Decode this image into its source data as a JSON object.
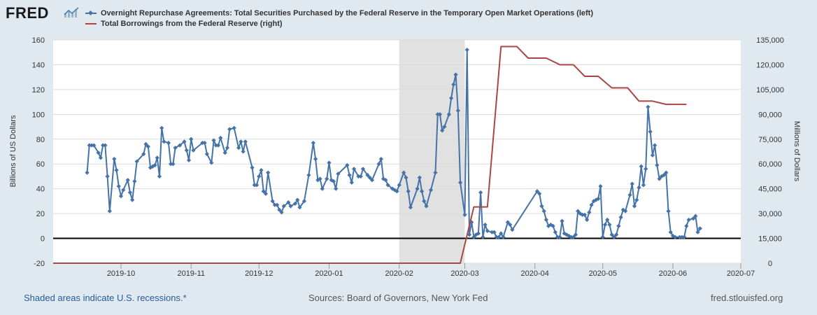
{
  "brand": {
    "logo_text": "FRED"
  },
  "legend": [
    {
      "label": "Overnight Repurchase Agreements: Total Securities Purchased by the Federal Reserve in the Temporary Open Market Operations (left)",
      "color": "#4572a7"
    },
    {
      "label": "Total Borrowings from the Federal Reserve (right)",
      "color": "#aa4643"
    }
  ],
  "footer": {
    "recession_note": "Shaded areas indicate U.S. recessions.*",
    "sources": "Sources: Board of Governors, New York Fed",
    "site": "fred.stlouisfed.org"
  },
  "colors": {
    "background": "#e1e9f0",
    "plot_bg": "#ffffff",
    "grid": "#dcdcdc",
    "recession": "#e1e1e1",
    "zero_line": "#000000"
  },
  "chart_data": {
    "type": "line",
    "xlabel": "",
    "ylabel": "Billions of US Dollars",
    "ylabel_right": "Millions of Dollars",
    "ylim": [
      -20,
      160
    ],
    "ylim_right": [
      0,
      135000
    ],
    "x_range_days": [
      0,
      304
    ],
    "yticks": [
      "160",
      "140",
      "120",
      "100",
      "80",
      "60",
      "40",
      "20",
      "0",
      "-20"
    ],
    "yticks_right": [
      "135,000",
      "120,000",
      "105,000",
      "90,000",
      "75,000",
      "60,000",
      "45,000",
      "30,000",
      "15,000",
      "0"
    ],
    "xticks": [
      {
        "label": "2019-10",
        "day": 30
      },
      {
        "label": "2019-11",
        "day": 61
      },
      {
        "label": "2019-12",
        "day": 91
      },
      {
        "label": "2020-01",
        "day": 122
      },
      {
        "label": "2020-02",
        "day": 153
      },
      {
        "label": "2020-03",
        "day": 182
      },
      {
        "label": "2020-04",
        "day": 213
      },
      {
        "label": "2020-05",
        "day": 243
      },
      {
        "label": "2020-06",
        "day": 274
      },
      {
        "label": "2020-07",
        "day": 304
      }
    ],
    "recession": {
      "start_day": 153,
      "end_day": 182
    },
    "series": [
      {
        "name": "Overnight Repurchase Agreements (left, billions)",
        "axis": "left",
        "color": "#4572a7",
        "points": [
          [
            15,
            53
          ],
          [
            16,
            75
          ],
          [
            17,
            75
          ],
          [
            18,
            75
          ],
          [
            20,
            69
          ],
          [
            21,
            65
          ],
          [
            22,
            75
          ],
          [
            23,
            75
          ],
          [
            24,
            50
          ],
          [
            25,
            22
          ],
          [
            27,
            64
          ],
          [
            28,
            55
          ],
          [
            29,
            42
          ],
          [
            30,
            34
          ],
          [
            31,
            39
          ],
          [
            33,
            47
          ],
          [
            34,
            37
          ],
          [
            35,
            31
          ],
          [
            36,
            46
          ],
          [
            37,
            62
          ],
          [
            40,
            68
          ],
          [
            41,
            76
          ],
          [
            42,
            74
          ],
          [
            43,
            57
          ],
          [
            44,
            58
          ],
          [
            45,
            59
          ],
          [
            46,
            65
          ],
          [
            47,
            50
          ],
          [
            48,
            89
          ],
          [
            49,
            78
          ],
          [
            51,
            77
          ],
          [
            52,
            60
          ],
          [
            53,
            60
          ],
          [
            54,
            73
          ],
          [
            56,
            75
          ],
          [
            58,
            78
          ],
          [
            59,
            71
          ],
          [
            60,
            63
          ],
          [
            61,
            80
          ],
          [
            62,
            71
          ],
          [
            66,
            77
          ],
          [
            67,
            77
          ],
          [
            68,
            68
          ],
          [
            70,
            61
          ],
          [
            71,
            79
          ],
          [
            72,
            75
          ],
          [
            73,
            75
          ],
          [
            74,
            81
          ],
          [
            76,
            69
          ],
          [
            77,
            73
          ],
          [
            78,
            88
          ],
          [
            80,
            89
          ],
          [
            82,
            73
          ],
          [
            83,
            78
          ],
          [
            84,
            70
          ],
          [
            85,
            78
          ],
          [
            88,
            57
          ],
          [
            89,
            43
          ],
          [
            90,
            43
          ],
          [
            91,
            50
          ],
          [
            92,
            55
          ],
          [
            93,
            38
          ],
          [
            94,
            36
          ],
          [
            95,
            53
          ],
          [
            97,
            30
          ],
          [
            98,
            27
          ],
          [
            99,
            27
          ],
          [
            100,
            23
          ],
          [
            101,
            21
          ],
          [
            102,
            26
          ],
          [
            104,
            29
          ],
          [
            105,
            26
          ],
          [
            107,
            28
          ],
          [
            108,
            31
          ],
          [
            109,
            25
          ],
          [
            111,
            30
          ],
          [
            113,
            51
          ],
          [
            115,
            77
          ],
          [
            116,
            64
          ],
          [
            117,
            47
          ],
          [
            118,
            48
          ],
          [
            119,
            40
          ],
          [
            121,
            48
          ],
          [
            122,
            61
          ],
          [
            123,
            47
          ],
          [
            124,
            46
          ],
          [
            125,
            40
          ],
          [
            126,
            52
          ],
          [
            130,
            59
          ],
          [
            131,
            51
          ],
          [
            132,
            45
          ],
          [
            133,
            56
          ],
          [
            135,
            50
          ],
          [
            136,
            50
          ],
          [
            137,
            56
          ],
          [
            139,
            51
          ],
          [
            140,
            49
          ],
          [
            141,
            47
          ],
          [
            144,
            60
          ],
          [
            145,
            64
          ],
          [
            146,
            48
          ],
          [
            147,
            47
          ],
          [
            148,
            43
          ],
          [
            150,
            40
          ],
          [
            151,
            39
          ],
          [
            152,
            38
          ],
          [
            153,
            43
          ],
          [
            155,
            53
          ],
          [
            156,
            49
          ],
          [
            157,
            38
          ],
          [
            158,
            25
          ],
          [
            161,
            40
          ],
          [
            162,
            49
          ],
          [
            163,
            38
          ],
          [
            164,
            30
          ],
          [
            165,
            26
          ],
          [
            167,
            39
          ],
          [
            169,
            53
          ],
          [
            170,
            100
          ],
          [
            171,
            100
          ],
          [
            172,
            87
          ],
          [
            173,
            90
          ],
          [
            175,
            100
          ],
          [
            176,
            113
          ],
          [
            177,
            124
          ],
          [
            178,
            132
          ],
          [
            179,
            103
          ],
          [
            180,
            45
          ],
          [
            182,
            19
          ],
          [
            183,
            152
          ],
          [
            184,
            3
          ],
          [
            185,
            13
          ],
          [
            186,
            1
          ],
          [
            187,
            3
          ],
          [
            188,
            4
          ],
          [
            189,
            37
          ],
          [
            190,
            1
          ],
          [
            191,
            11
          ],
          [
            192,
            6
          ],
          [
            194,
            5
          ],
          [
            195,
            5
          ],
          [
            196,
            1
          ],
          [
            197,
            1
          ],
          [
            198,
            4
          ],
          [
            199,
            1
          ],
          [
            201,
            13
          ],
          [
            202,
            11
          ],
          [
            203,
            7
          ],
          [
            214,
            38
          ],
          [
            215,
            36
          ],
          [
            216,
            26
          ],
          [
            217,
            22
          ],
          [
            218,
            15
          ],
          [
            219,
            10
          ],
          [
            220,
            11
          ],
          [
            221,
            10
          ],
          [
            222,
            5
          ],
          [
            223,
            1
          ],
          [
            224,
            1
          ],
          [
            225,
            14
          ],
          [
            226,
            4
          ],
          [
            227,
            3
          ],
          [
            228,
            2
          ],
          [
            229,
            1
          ],
          [
            230,
            1
          ],
          [
            231,
            3
          ],
          [
            232,
            22
          ],
          [
            233,
            20
          ],
          [
            234,
            19
          ],
          [
            235,
            19
          ],
          [
            236,
            15
          ],
          [
            237,
            21
          ],
          [
            238,
            27
          ],
          [
            239,
            30
          ],
          [
            240,
            31
          ],
          [
            241,
            32
          ],
          [
            242,
            42
          ],
          [
            243,
            1
          ],
          [
            244,
            11
          ],
          [
            245,
            15
          ],
          [
            246,
            11
          ],
          [
            247,
            3
          ],
          [
            248,
            1
          ],
          [
            249,
            3
          ],
          [
            250,
            10
          ],
          [
            251,
            17
          ],
          [
            252,
            23
          ],
          [
            253,
            22
          ],
          [
            255,
            35
          ],
          [
            256,
            44
          ],
          [
            257,
            26
          ],
          [
            258,
            31
          ],
          [
            259,
            41
          ],
          [
            260,
            58
          ],
          [
            261,
            43
          ],
          [
            262,
            56
          ],
          [
            263,
            106
          ],
          [
            264,
            86
          ],
          [
            265,
            67
          ],
          [
            266,
            75
          ],
          [
            267,
            59
          ],
          [
            268,
            48
          ],
          [
            269,
            50
          ],
          [
            270,
            51
          ],
          [
            271,
            53
          ],
          [
            272,
            22
          ],
          [
            273,
            5
          ],
          [
            274,
            2
          ],
          [
            275,
            1
          ],
          [
            277,
            1
          ],
          [
            278,
            1
          ],
          [
            279,
            1
          ],
          [
            280,
            10
          ],
          [
            281,
            15
          ],
          [
            283,
            16
          ],
          [
            284,
            18
          ],
          [
            285,
            5
          ],
          [
            286,
            8
          ]
        ]
      },
      {
        "name": "Total Borrowings from the Federal Reserve (right, millions)",
        "axis": "right",
        "color": "#aa4643",
        "points": [
          [
            0,
            0
          ],
          [
            180,
            0
          ],
          [
            186,
            34000
          ],
          [
            192,
            34000
          ],
          [
            198,
            131000
          ],
          [
            205,
            131000
          ],
          [
            210,
            124000
          ],
          [
            218,
            124000
          ],
          [
            224,
            120000
          ],
          [
            230,
            120000
          ],
          [
            235,
            113000
          ],
          [
            241,
            113000
          ],
          [
            247,
            106000
          ],
          [
            254,
            106000
          ],
          [
            259,
            98000
          ],
          [
            265,
            98000
          ],
          [
            271,
            96000
          ],
          [
            280,
            96000
          ]
        ]
      }
    ]
  }
}
